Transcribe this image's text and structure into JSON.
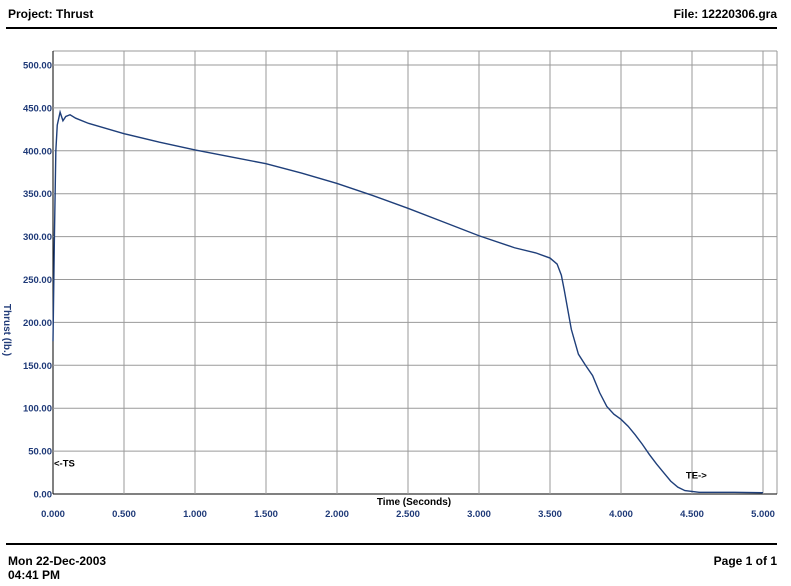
{
  "header": {
    "project": "Project: Thrust",
    "file": "File: 12220306.gra"
  },
  "footer": {
    "date": "Mon 22-Dec-2003",
    "time": "04:41 PM",
    "page": "Page 1 of 1"
  },
  "colors": {
    "series": "#1f3f7a",
    "tick_text": "#1f3a78",
    "grid": "#9a9a9a"
  },
  "chart_data": {
    "type": "line",
    "title": "",
    "xlabel": "Time (Seconds)",
    "ylabel": "Thrust (lb.)",
    "xlim": [
      0,
      5.0
    ],
    "ylim": [
      0,
      500
    ],
    "grid": true,
    "x_ticks": [
      "0.000",
      "0.500",
      "1.000",
      "1.500",
      "2.000",
      "2.500",
      "3.000",
      "3.500",
      "4.000",
      "4.500",
      "5.000"
    ],
    "y_ticks": [
      "0.00",
      "50.00",
      "100.00",
      "150.00",
      "200.00",
      "250.00",
      "300.00",
      "350.00",
      "400.00",
      "450.00",
      "500.00"
    ],
    "annotations": [
      {
        "text": "<-TS",
        "x": 0.0,
        "y": 32
      },
      {
        "text": "TE->",
        "x": 4.45,
        "y": 18
      }
    ],
    "series": [
      {
        "name": "",
        "x": [
          0.0,
          0.01,
          0.02,
          0.03,
          0.05,
          0.07,
          0.09,
          0.12,
          0.16,
          0.25,
          0.5,
          0.75,
          1.0,
          1.25,
          1.5,
          1.75,
          2.0,
          2.25,
          2.5,
          2.75,
          3.0,
          3.25,
          3.4,
          3.5,
          3.55,
          3.58,
          3.6,
          3.65,
          3.7,
          3.75,
          3.8,
          3.85,
          3.9,
          3.95,
          4.0,
          4.05,
          4.1,
          4.15,
          4.2,
          4.25,
          4.3,
          4.35,
          4.4,
          4.45,
          4.5,
          4.55,
          4.58,
          4.62,
          4.7,
          4.8,
          5.0
        ],
        "y": [
          178,
          300,
          400,
          430,
          445,
          435,
          440,
          442,
          438,
          432,
          420,
          410,
          401,
          393,
          385,
          374,
          362,
          348,
          333,
          317,
          301,
          287,
          281,
          275,
          268,
          255,
          238,
          192,
          163,
          150,
          138,
          118,
          102,
          93,
          87,
          79,
          69,
          58,
          46,
          35,
          25,
          15,
          8,
          4,
          3,
          2,
          2,
          2,
          2,
          2,
          1.5
        ]
      }
    ]
  }
}
